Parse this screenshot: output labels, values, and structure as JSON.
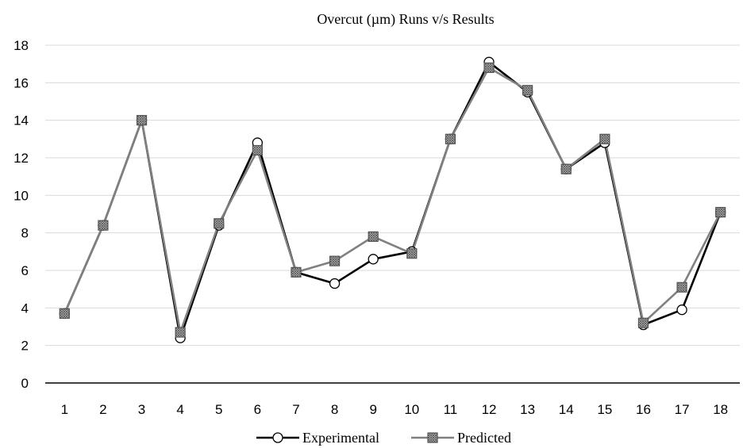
{
  "chart_data": {
    "type": "line",
    "title": "Overcut (µm) Runs v/s Results",
    "xlabel": "",
    "ylabel": "",
    "categories": [
      "1",
      "2",
      "3",
      "4",
      "5",
      "6",
      "7",
      "8",
      "9",
      "10",
      "11",
      "12",
      "13",
      "14",
      "15",
      "16",
      "17",
      "18"
    ],
    "ylim": [
      0,
      18
    ],
    "yticks": [
      "0",
      "2",
      "4",
      "6",
      "8",
      "10",
      "12",
      "14",
      "16",
      "18"
    ],
    "grid": "horizontal",
    "legend_position": "bottom",
    "series": [
      {
        "name": "Experimental",
        "color": "#000000",
        "marker": "circle",
        "values": [
          3.7,
          8.4,
          14.0,
          2.4,
          8.4,
          12.8,
          5.9,
          5.3,
          6.6,
          7.0,
          13.0,
          17.1,
          15.5,
          11.4,
          12.8,
          3.1,
          3.9,
          9.1
        ]
      },
      {
        "name": "Predicted",
        "color": "#808080",
        "marker": "hatched-square",
        "values": [
          3.7,
          8.4,
          14.0,
          2.7,
          8.5,
          12.4,
          5.9,
          6.5,
          7.8,
          6.9,
          13.0,
          16.8,
          15.6,
          11.4,
          13.0,
          3.2,
          5.1,
          9.1
        ]
      }
    ]
  }
}
